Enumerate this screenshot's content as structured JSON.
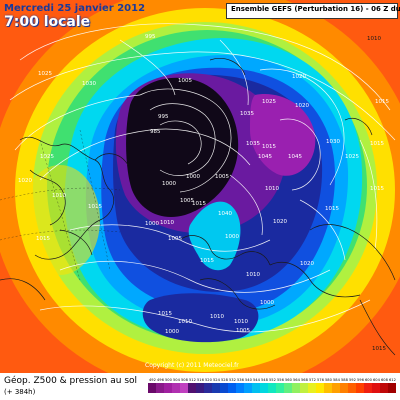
{
  "header": {
    "date": "Mercredi 25 janvier 2012",
    "time": "7:00 locale",
    "run": "Ensemble GEFS (Perturbation 16) - 06 Z du 09.01.2012"
  },
  "footer": {
    "field": "Géop. Z500 & pression au sol",
    "lead": "(+ 384h)",
    "copyright": "Copyright (c) 2011 Meteociel.fr"
  },
  "legend": {
    "ticks": [
      "492",
      "496",
      "500",
      "504",
      "508",
      "512",
      "516",
      "520",
      "524",
      "528",
      "532",
      "536",
      "540",
      "544",
      "548",
      "552",
      "556",
      "560",
      "564",
      "568",
      "572",
      "576",
      "580",
      "584",
      "588",
      "592",
      "596",
      "600",
      "604",
      "608",
      "612"
    ],
    "colors": [
      "#6a0a6a",
      "#8a1a8a",
      "#a020a0",
      "#b030b0",
      "#c040c0",
      "#501070",
      "#3a1a80",
      "#2a2a9a",
      "#1a3ab0",
      "#0a4ad0",
      "#0060f0",
      "#0080ff",
      "#00a0ff",
      "#00c0f0",
      "#00d8e0",
      "#10e8c0",
      "#30f0a0",
      "#60f080",
      "#90f060",
      "#c0f040",
      "#e8f020",
      "#ffe800",
      "#ffc000",
      "#ffa000",
      "#ff8000",
      "#ff6000",
      "#ff4000",
      "#f02010",
      "#e01010",
      "#c00808",
      "#a00000"
    ]
  },
  "map": {
    "colors": {
      "warm_edge": "#ff4010",
      "orange": "#ff8a00",
      "yellow": "#ffe000",
      "lime": "#a8f040",
      "green": "#40e070",
      "cyan": "#00d8f0",
      "lightblue": "#00a8ff",
      "blue": "#1050e0",
      "deepblue": "#1a2aa0",
      "purple": "#6a1aa0",
      "magenta": "#9a20b0",
      "black": "#100818"
    },
    "pressure_labels": [
      "995",
      "1025",
      "1010",
      "1015",
      "1020",
      "1030",
      "1025",
      "1005",
      "995",
      "985",
      "1000",
      "1000",
      "1005",
      "1035",
      "1025",
      "1020",
      "1035",
      "1015",
      "1045",
      "1045",
      "1030",
      "1025",
      "1015",
      "1020",
      "1010",
      "1040",
      "1020",
      "1015",
      "1015",
      "1015",
      "1005",
      "1010",
      "1015",
      "1000",
      "1000",
      "1005",
      "1010",
      "1020",
      "1015",
      "1015",
      "1015",
      "1010",
      "1010",
      "1010",
      "1010",
      "1000",
      "1005",
      "1000",
      "1015"
    ]
  }
}
